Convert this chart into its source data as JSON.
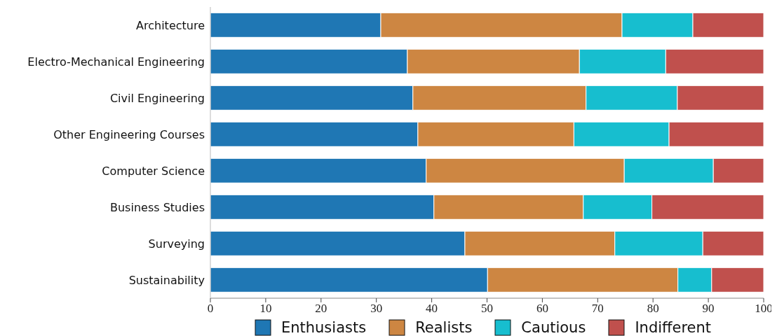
{
  "chart_data": {
    "type": "bar",
    "orientation": "horizontal",
    "stacked": true,
    "categories": [
      "Architecture",
      "Electro-Mechanical Engineering",
      "Civil Engineering",
      "Other Engineering Courses",
      "Computer Science",
      "Business Studies",
      "Surveying",
      "Sustainability"
    ],
    "series": [
      {
        "name": "Enthusiasts",
        "color": "#1f77b4",
        "values": [
          30.8,
          35.6,
          36.6,
          37.5,
          39.0,
          40.4,
          46.0,
          50.1
        ]
      },
      {
        "name": "Realists",
        "color": "#cd8642",
        "values": [
          43.6,
          31.1,
          31.3,
          28.2,
          35.8,
          27.0,
          27.1,
          34.4
        ]
      },
      {
        "name": "Cautious",
        "color": "#17becf",
        "values": [
          12.8,
          15.6,
          16.5,
          17.2,
          16.1,
          12.4,
          15.9,
          6.1
        ]
      },
      {
        "name": "Indifferent",
        "color": "#c0504d",
        "values": [
          12.8,
          17.7,
          15.6,
          17.1,
          9.1,
          20.2,
          11.0,
          9.4
        ]
      }
    ],
    "xlim": [
      0,
      100
    ],
    "xticks": [
      0,
      10,
      20,
      30,
      40,
      50,
      60,
      70,
      80,
      90,
      100
    ],
    "legend": "bottom"
  }
}
